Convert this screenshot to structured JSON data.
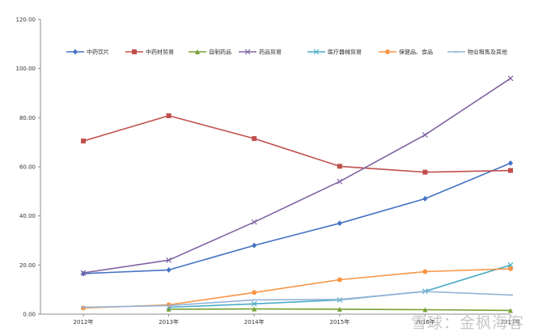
{
  "chart_data": {
    "type": "line",
    "categories": [
      "2012年",
      "2013年",
      "2014年",
      "2015年",
      "2016年",
      "2017年"
    ],
    "ylim": [
      0,
      120
    ],
    "yticks": [
      "0.00",
      "20.00",
      "40.00",
      "60.00",
      "80.00",
      "100.00",
      "120.00"
    ],
    "grid": false,
    "legend": "top",
    "series": [
      {
        "name": "中药饮片",
        "color": "#4472C4",
        "marker": "diamond",
        "values": [
          16.5,
          18.0,
          28.0,
          37.0,
          47.0,
          61.5
        ]
      },
      {
        "name": "中药材贸易",
        "color": "#C0504D",
        "marker": "square",
        "values": [
          70.5,
          80.8,
          71.5,
          60.2,
          57.8,
          58.5
        ]
      },
      {
        "name": "自制药品",
        "color": "#77A033",
        "marker": "triangle",
        "values": [
          null,
          2.0,
          2.1,
          2.0,
          1.8,
          1.5
        ]
      },
      {
        "name": "药品贸易",
        "color": "#8064A2",
        "marker": "x",
        "values": [
          16.8,
          22.0,
          37.5,
          54.0,
          73.0,
          96.0
        ]
      },
      {
        "name": "医疗器械贸易",
        "color": "#4BACC6",
        "marker": "x",
        "values": [
          null,
          2.8,
          4.2,
          5.8,
          9.3,
          20.0
        ]
      },
      {
        "name": "保健品、食品",
        "color": "#F79646",
        "marker": "circle",
        "values": [
          2.5,
          3.8,
          8.8,
          14.0,
          17.3,
          18.5
        ]
      },
      {
        "name": "物业租售及其他",
        "color": "#95B3D7",
        "marker": "dash",
        "values": [
          2.8,
          3.5,
          5.8,
          6.0,
          9.2,
          7.8
        ]
      }
    ]
  },
  "watermark": "雪球：金枫海客"
}
